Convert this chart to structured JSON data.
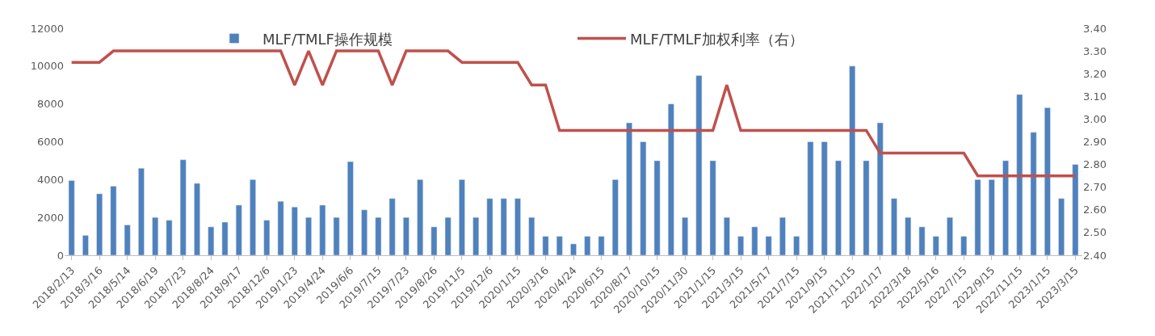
{
  "chart_data": {
    "type": "bar",
    "categories": [
      "2018/2/13",
      null,
      "2018/3/16",
      null,
      "2018/5/14",
      null,
      "2018/6/19",
      null,
      "2018/7/23",
      null,
      "2018/8/24",
      null,
      "2018/9/17",
      null,
      "2018/12/6",
      null,
      "2019/1/23",
      null,
      "2019/4/24",
      null,
      "2019/6/6",
      null,
      "2019/7/15",
      null,
      "2019/7/23",
      null,
      "2019/8/26",
      null,
      "2019/11/5",
      null,
      "2019/12/6",
      null,
      "2020/1/15",
      null,
      "2020/3/16",
      null,
      "2020/4/24",
      null,
      "2020/6/15",
      null,
      "2020/8/17",
      null,
      "2020/10/15",
      null,
      "2020/11/30",
      null,
      "2021/1/15",
      null,
      "2021/3/15",
      null,
      "2021/5/17",
      null,
      "2021/7/15",
      null,
      "2021/9/15",
      null,
      "2021/11/15",
      null,
      "2022/1/17",
      null,
      "2022/3/18",
      null,
      "2022/5/16",
      null,
      "2022/7/15",
      null,
      "2022/9/15",
      null,
      "2022/11/15",
      null,
      "2023/1/15",
      null,
      "2023/3/15"
    ],
    "series": [
      {
        "name": "MLF/TMLF操作规模",
        "color": "#4f81bd",
        "values": [
          3950,
          1050,
          3250,
          3650,
          1600,
          4600,
          2000,
          1850,
          5050,
          3800,
          1500,
          1750,
          2650,
          4000,
          1850,
          2850,
          2550,
          2000,
          2650,
          2000,
          4950,
          2400,
          2000,
          3000,
          2000,
          4000,
          1500,
          2000,
          4000,
          2000,
          3000,
          3000,
          3000,
          2000,
          1000,
          1000,
          600,
          1000,
          1000,
          4000,
          7000,
          6000,
          5000,
          8000,
          2000,
          9500,
          5000,
          2000,
          1000,
          1500,
          1000,
          2000,
          1000,
          6000,
          6000,
          5000,
          10000,
          5000,
          7000,
          3000,
          2000,
          1500,
          1000,
          2000,
          1000,
          4000,
          4000,
          5000,
          8500,
          6500,
          7800,
          3000,
          4800
        ]
      },
      {
        "name": "MLF/TMLF加权利率（右）",
        "type": "line",
        "axis": "y2",
        "color": "#c0504d",
        "values": [
          3.25,
          3.25,
          3.25,
          3.3,
          3.3,
          3.3,
          3.3,
          3.3,
          3.3,
          3.3,
          3.3,
          3.3,
          3.3,
          3.3,
          3.3,
          3.3,
          3.15,
          3.3,
          3.15,
          3.3,
          3.3,
          3.3,
          3.3,
          3.15,
          3.3,
          3.3,
          3.3,
          3.3,
          3.25,
          3.25,
          3.25,
          3.25,
          3.25,
          3.15,
          3.15,
          2.95,
          2.95,
          2.95,
          2.95,
          2.95,
          2.95,
          2.95,
          2.95,
          2.95,
          2.95,
          2.95,
          2.95,
          3.15,
          2.95,
          2.95,
          2.95,
          2.95,
          2.95,
          2.95,
          2.95,
          2.95,
          2.95,
          2.95,
          2.85,
          2.85,
          2.85,
          2.85,
          2.85,
          2.85,
          2.85,
          2.75,
          2.75,
          2.75,
          2.75,
          2.75,
          2.75,
          2.75,
          2.75
        ]
      }
    ],
    "ylim": [
      0,
      12000
    ],
    "yticks": [
      0,
      2000,
      4000,
      6000,
      8000,
      10000,
      12000
    ],
    "y2lim": [
      2.4,
      3.4
    ],
    "y2ticks": [
      {
        "value": 2.4,
        "label": "2.40"
      },
      {
        "value": 2.5,
        "label": "2.50"
      },
      {
        "value": 2.6,
        "label": "2.60"
      },
      {
        "value": 2.7,
        "label": "2.70"
      },
      {
        "value": 2.8,
        "label": "2.80"
      },
      {
        "value": 2.9,
        "label": "2.90"
      },
      {
        "value": 3.0,
        "label": "3.00"
      },
      {
        "value": 3.1,
        "label": "3.10"
      },
      {
        "value": 3.2,
        "label": "3.20"
      },
      {
        "value": 3.3,
        "label": "3.30"
      },
      {
        "value": 3.4,
        "label": "3.40"
      }
    ],
    "legend": "top",
    "line_style": "solid",
    "marker": "none"
  }
}
